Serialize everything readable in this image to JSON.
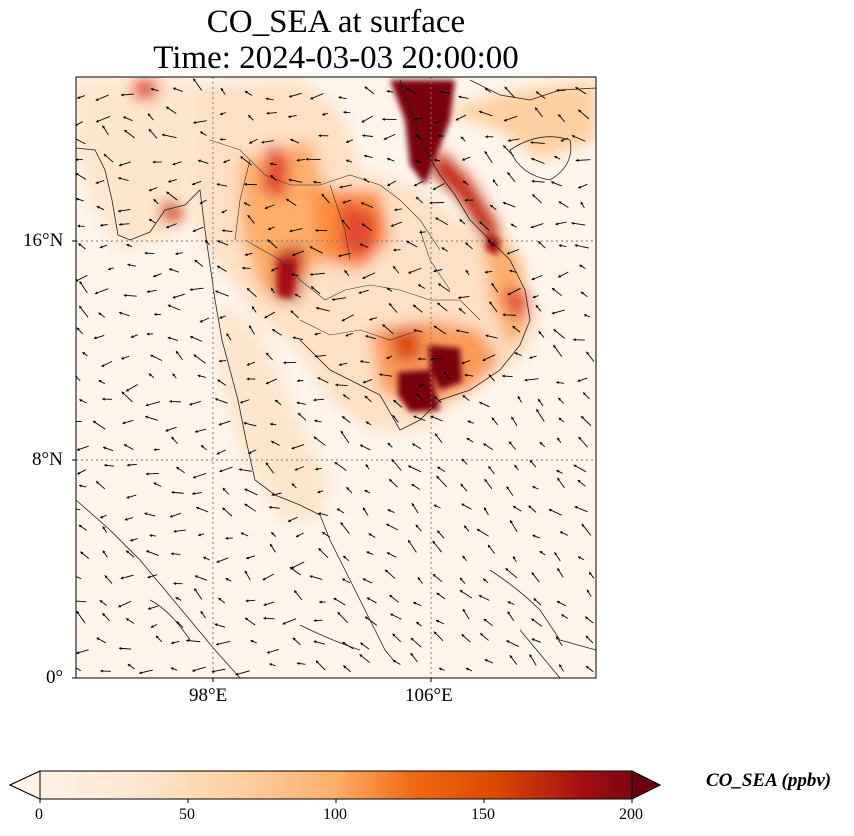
{
  "title": {
    "line1": "CO_SEA at surface",
    "line2": "Time: 2024-03-03 20:00:00"
  },
  "map": {
    "lat_ticks": [
      "16°N",
      "8°N",
      "0°"
    ],
    "lon_ticks": [
      "98°E",
      "106°E"
    ],
    "extent": {
      "lon_min": 93,
      "lon_max": 112,
      "lat_min": 0,
      "lat_max": 22
    }
  },
  "colorbar": {
    "label": "CO_SEA (ppbv)",
    "ticks": [
      "0",
      "50",
      "100",
      "150",
      "200"
    ],
    "min": 0,
    "max": 200,
    "colors": [
      "#fff5eb",
      "#fdd0a2",
      "#fd8d3c",
      "#d94801",
      "#a50f15",
      "#67000d"
    ]
  }
}
